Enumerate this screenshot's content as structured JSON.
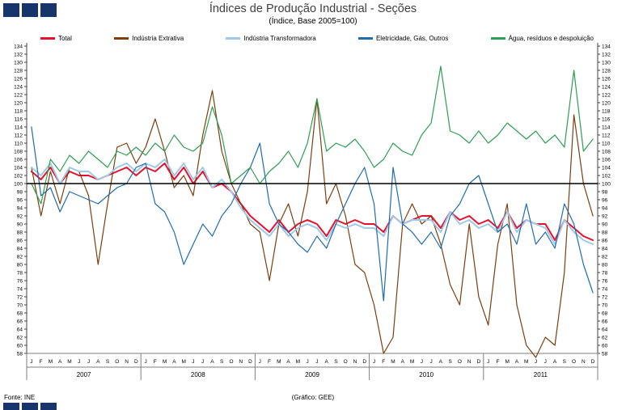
{
  "footer": {
    "source": "Fonte: INE",
    "credit": "(Gráfico: GEE)"
  },
  "logo": {
    "square_count": 3,
    "color": "#17356b"
  },
  "chart_data": {
    "type": "line",
    "title": "Índices de Produção Industrial - Seções",
    "subtitle": "(Índice, Base 2005=100)",
    "ylim": [
      58,
      134
    ],
    "ytick_step": 2,
    "reference_line": 100,
    "legend_position": "top",
    "grid": false,
    "years": [
      "2007",
      "2008",
      "2009",
      "2010",
      "2011"
    ],
    "month_letters": [
      "J",
      "F",
      "M",
      "A",
      "M",
      "J",
      "J",
      "A",
      "S",
      "O",
      "N",
      "D"
    ],
    "series": [
      {
        "name": "Total",
        "color": "#e8112d",
        "width": 2,
        "values": [
          103,
          101,
          104,
          100,
          103,
          102,
          102,
          101,
          102,
          103,
          104,
          102,
          104,
          103,
          105,
          101,
          104,
          100,
          103,
          99,
          100,
          98,
          95,
          92,
          90,
          88,
          91,
          88,
          90,
          91,
          90,
          87,
          91,
          90,
          91,
          90,
          90,
          88,
          92,
          90,
          91,
          92,
          92,
          89,
          93,
          91,
          92,
          90,
          91,
          89,
          93,
          89,
          91,
          90,
          90,
          86,
          91,
          89,
          87,
          86
        ]
      },
      {
        "name": "Indústria Extrativa",
        "color": "#7b3f10",
        "width": 1.2,
        "values": [
          104,
          92,
          103,
          95,
          104,
          103,
          97,
          80,
          95,
          109,
          110,
          105,
          109,
          116,
          108,
          99,
          102,
          97,
          112,
          123,
          108,
          100,
          95,
          90,
          88,
          76,
          90,
          95,
          87,
          98,
          121,
          95,
          100,
          92,
          80,
          78,
          70,
          58,
          62,
          90,
          95,
          90,
          92,
          85,
          75,
          70,
          90,
          72,
          65,
          85,
          95,
          70,
          60,
          57,
          62,
          60,
          78,
          117,
          100,
          92
        ]
      },
      {
        "name": "Indústria Transformadora",
        "color": "#9fc9e8",
        "width": 2,
        "values": [
          104,
          102,
          105,
          100,
          104,
          103,
          103,
          101,
          102,
          104,
          105,
          103,
          105,
          104,
          106,
          102,
          105,
          101,
          104,
          99,
          101,
          98,
          94,
          91,
          89,
          87,
          90,
          87,
          89,
          90,
          89,
          86,
          90,
          89,
          90,
          89,
          89,
          87,
          92,
          90,
          91,
          91,
          91,
          88,
          93,
          90,
          91,
          89,
          90,
          88,
          93,
          88,
          91,
          90,
          89,
          85,
          91,
          88,
          86,
          85
        ]
      },
      {
        "name": "Eletricidade, Gás, Outros",
        "color": "#1f6cb0",
        "width": 1.2,
        "values": [
          114,
          97,
          99,
          93,
          98,
          97,
          96,
          95,
          97,
          99,
          100,
          104,
          105,
          95,
          93,
          88,
          80,
          85,
          90,
          87,
          92,
          95,
          100,
          104,
          110,
          95,
          90,
          88,
          85,
          83,
          87,
          84,
          90,
          95,
          100,
          104,
          95,
          71,
          104,
          90,
          88,
          85,
          88,
          84,
          92,
          95,
          100,
          102,
          95,
          88,
          90,
          85,
          95,
          85,
          88,
          84,
          95,
          90,
          80,
          73
        ]
      },
      {
        "name": "Água, resíduos e despoluição",
        "color": "#2e9e54",
        "width": 1.2,
        "values": [
          100,
          95,
          106,
          103,
          107,
          105,
          108,
          106,
          104,
          108,
          107,
          109,
          107,
          110,
          108,
          112,
          109,
          108,
          110,
          119,
          112,
          100,
          102,
          104,
          100,
          103,
          105,
          108,
          104,
          110,
          121,
          108,
          110,
          109,
          111,
          108,
          104,
          106,
          110,
          108,
          107,
          112,
          115,
          129,
          113,
          112,
          110,
          113,
          110,
          112,
          115,
          113,
          111,
          113,
          110,
          112,
          109,
          128,
          108,
          111
        ]
      }
    ]
  }
}
